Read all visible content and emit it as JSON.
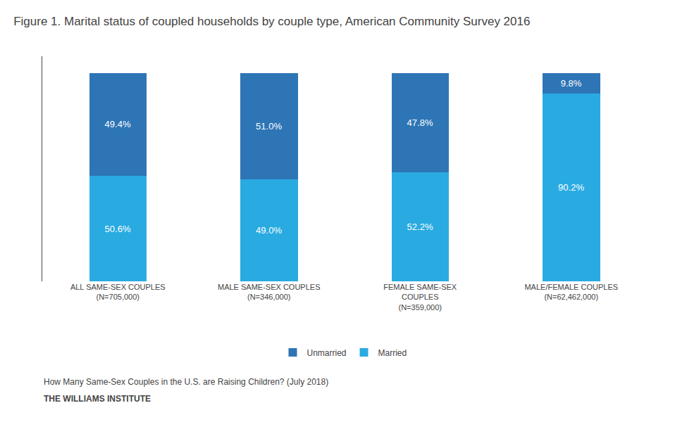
{
  "chart_data": {
    "type": "bar",
    "title": "Figure 1. Marital status of coupled households by couple type, American Community Survey 2016",
    "categories": [
      "ALL SAME-SEX COUPLES\n(N=705,000)",
      "MALE SAME-SEX COUPLES\n(N=346,000)",
      "FEMALE SAME-SEX\nCOUPLES\n(N=359,000)",
      "MALE/FEMALE COUPLES\n(N=62,462,000)"
    ],
    "series": [
      {
        "name": "Married",
        "color": "#29ABE2",
        "values": [
          50.6,
          49.0,
          52.2,
          90.2
        ],
        "value_labels": [
          "50.6%",
          "49.0%",
          "52.2%",
          "90.2%"
        ]
      },
      {
        "name": "Unmarried",
        "color": "#2E75B6",
        "values": [
          49.4,
          51.0,
          47.8,
          9.8
        ],
        "value_labels": [
          "49.4%",
          "51.0%",
          "47.8%",
          "9.8%"
        ]
      }
    ],
    "stacked": true,
    "data_labels": true,
    "ylim": [
      0,
      108
    ],
    "tick_labels": "x",
    "grid": false,
    "legend": "bottom",
    "annotations": [
      "How Many Same-Sex Couples in the U.S. are Raising Children? (July 2018)",
      "THE WILLIAMS INSTITUTE"
    ]
  }
}
